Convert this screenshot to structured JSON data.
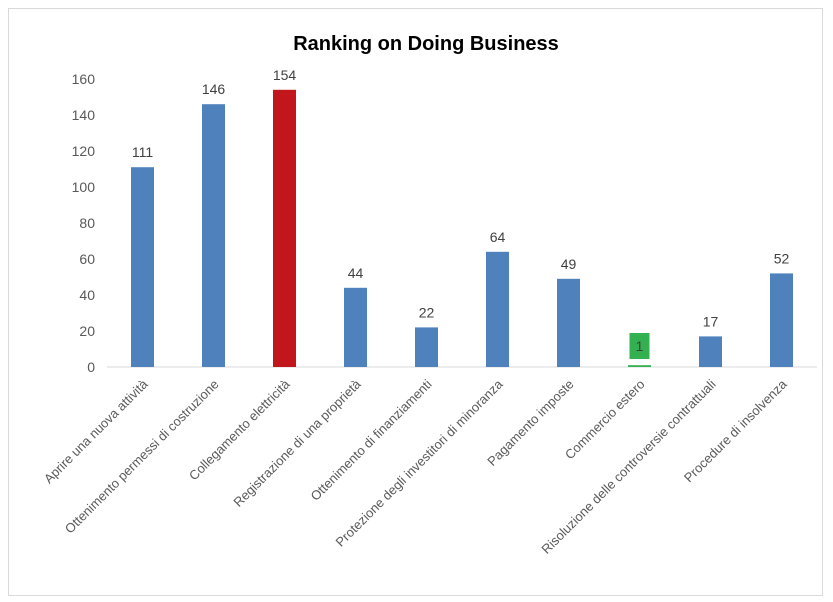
{
  "colors": {
    "default_bar": "#4f81bd",
    "highlight_bar": "#c0161c",
    "label_box": "#33b050",
    "grid": "#d9d9d9"
  },
  "chart_data": {
    "type": "bar",
    "title": "Ranking on Doing Business",
    "xlabel": "",
    "ylabel": "",
    "ylim": [
      0,
      160
    ],
    "yticks": [
      0,
      20,
      40,
      60,
      80,
      100,
      120,
      140,
      160
    ],
    "grid": false,
    "legend": "none",
    "categories": [
      "Aprire una nuova attività",
      "Ottenimento permessi di costruzione",
      "Collegamento elettricità",
      "Registrazione di una proprietà",
      "Ottenimento di finanziamenti",
      "Protezione degli investitori di minoranza",
      "Pagamento imposte",
      "Commercio estero",
      "Risoluzione delle controversie contrattuali",
      "Procedure di insolvenza"
    ],
    "values": [
      111,
      146,
      154,
      44,
      22,
      64,
      49,
      1,
      17,
      52
    ],
    "highlight": {
      "Collegamento elettricità": "#c0161c",
      "Commercio estero": "#33b050"
    }
  }
}
